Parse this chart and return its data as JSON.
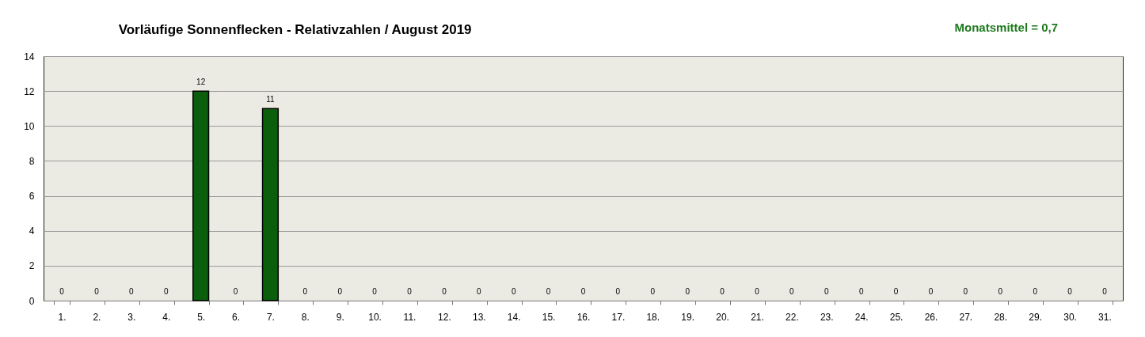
{
  "chart_data": {
    "type": "bar",
    "title": "Vorläufige Sonnenflecken - Relativzahlen  /  August 2019",
    "annotations": [
      "Monatsmittel = 0,7"
    ],
    "categories": [
      "1.",
      "2.",
      "3.",
      "4.",
      "5.",
      "6.",
      "7.",
      "8.",
      "9.",
      "10.",
      "11.",
      "12.",
      "13.",
      "14.",
      "15.",
      "16.",
      "17.",
      "18.",
      "19.",
      "20.",
      "21.",
      "22.",
      "23.",
      "24.",
      "25.",
      "26.",
      "27.",
      "28.",
      "29.",
      "30.",
      "31."
    ],
    "values": [
      0,
      0,
      0,
      0,
      12,
      0,
      11,
      0,
      0,
      0,
      0,
      0,
      0,
      0,
      0,
      0,
      0,
      0,
      0,
      0,
      0,
      0,
      0,
      0,
      0,
      0,
      0,
      0,
      0,
      0,
      0
    ],
    "color": "#0b5e0b",
    "ylim": [
      0,
      14
    ],
    "yticks": [
      0,
      2,
      4,
      6,
      8,
      10,
      12,
      14
    ],
    "grid": "y",
    "data_labels": true
  }
}
